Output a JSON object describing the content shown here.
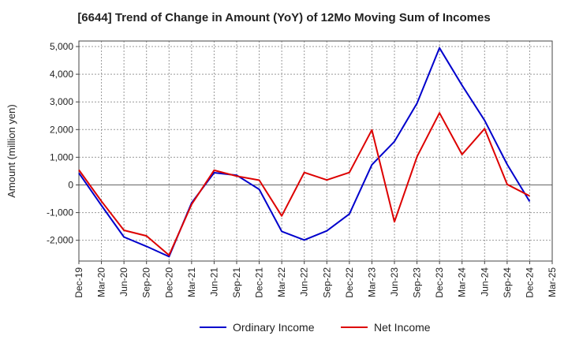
{
  "chart_data": {
    "type": "line",
    "title": "[6644]  Trend of Change in Amount (YoY) of 12Mo Moving Sum of Incomes",
    "xlabel": "",
    "ylabel": "Amount (million yen)",
    "ylim": [
      -2750,
      5200
    ],
    "yticks": [
      -2000,
      -1000,
      0,
      1000,
      2000,
      3000,
      4000,
      5000
    ],
    "ytick_labels": [
      "-2,000",
      "-1,000",
      "0",
      "1,000",
      "2,000",
      "3,000",
      "4,000",
      "5,000"
    ],
    "grid": true,
    "legend_position": "bottom",
    "x": [
      "Dec-19",
      "Mar-20",
      "Jun-20",
      "Sep-20",
      "Dec-20",
      "Mar-21",
      "Jun-21",
      "Sep-21",
      "Dec-21",
      "Mar-22",
      "Jun-22",
      "Sep-22",
      "Dec-22",
      "Mar-23",
      "Jun-23",
      "Sep-23",
      "Dec-23",
      "Mar-24",
      "Jun-24",
      "Sep-24",
      "Dec-24",
      "Mar-25"
    ],
    "series": [
      {
        "name": "Ordinary Income",
        "color": "#0000cc",
        "values": [
          430,
          -740,
          -1880,
          -2220,
          -2590,
          -650,
          440,
          350,
          -160,
          -1680,
          -1990,
          -1660,
          -1050,
          730,
          1570,
          2950,
          4950,
          3600,
          2330,
          740,
          -600,
          null
        ]
      },
      {
        "name": "Net Income",
        "color": "#dd0000",
        "values": [
          540,
          -590,
          -1640,
          -1840,
          -2540,
          -700,
          530,
          320,
          170,
          -1120,
          450,
          180,
          450,
          1990,
          -1330,
          1020,
          2600,
          1100,
          2030,
          20,
          -400,
          null
        ]
      }
    ]
  }
}
